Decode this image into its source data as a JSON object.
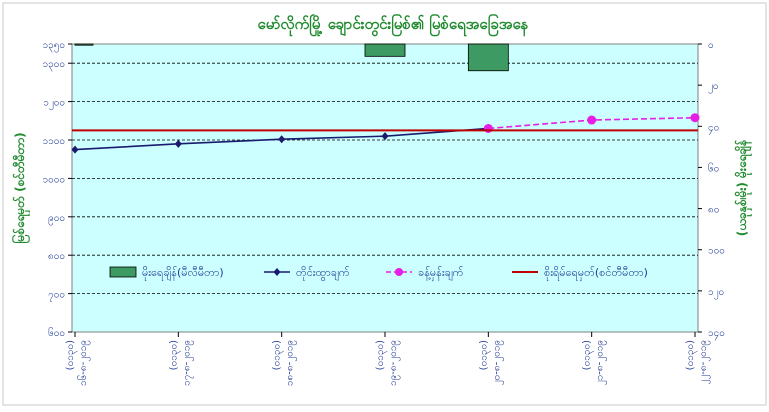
{
  "chart_data": {
    "type": "bar+line",
    "title": "မော်လိုက်မြို့ ချောင်းတွင်းမြစ်၏ မြစ်ရေအခြေအနေ",
    "ylabel_left": "မြစ်ရေမှတ် (စင်တီမီတာ)",
    "ylabel_right": "(ယခုနှစ်၊မိုး) မိုးရေချိန်",
    "left_axis": {
      "ylim": [
        600,
        1350
      ],
      "ticks": [
        600,
        700,
        800,
        900,
        1000,
        1100,
        1200,
        1300,
        1350
      ]
    },
    "right_axis": {
      "ylim": [
        0,
        140
      ],
      "reversed": true,
      "ticks": [
        0,
        20,
        40,
        60,
        80,
        100,
        120,
        140
      ]
    },
    "categories": [
      "၁၆-၈-၂၀၁၉ (၀၁၃၀)",
      "၁၇-၈-၂၀၁၉ (၀၁၃၀)",
      "၁၈-၈-၂၀၁၉ (၀၁၃၀)",
      "၁၉-၈-၂၀၁၉ (၀၁၃၀)",
      "၂၀-၈-၂၀၁၉ (၀၁၃၀)",
      "၂၁-၈-၂၀၁၉ (၀၁၃၀)",
      "၂၂-၈-၂၀၁၉ (၀၁၃၀)"
    ],
    "series": [
      {
        "name": "မိုးရေချိန်(မီလီမီတာ)",
        "type": "bar",
        "axis": "right",
        "color": "#3c9a62",
        "values": [
          0.5,
          null,
          null,
          6,
          13,
          null,
          null
        ]
      },
      {
        "name": "တိုင်းထွာချက်",
        "type": "line",
        "axis": "left",
        "color": "#1a1a6e",
        "marker": "diamond",
        "values": [
          1075,
          1090,
          1102,
          1110,
          1130,
          null,
          null
        ]
      },
      {
        "name": "ခန့်မှန်းချက်",
        "type": "line-dashed",
        "axis": "left",
        "color": "#e61ee6",
        "marker": "circle",
        "values": [
          null,
          null,
          null,
          null,
          1130,
          1152,
          1158
        ]
      },
      {
        "name": "စိုးရိမ်ရေမှတ်(စင်တီမီတာ)",
        "type": "hline",
        "axis": "left",
        "color": "#c00000",
        "value": 1125
      }
    ],
    "grid": true,
    "legend_position": "bottom-inside"
  }
}
